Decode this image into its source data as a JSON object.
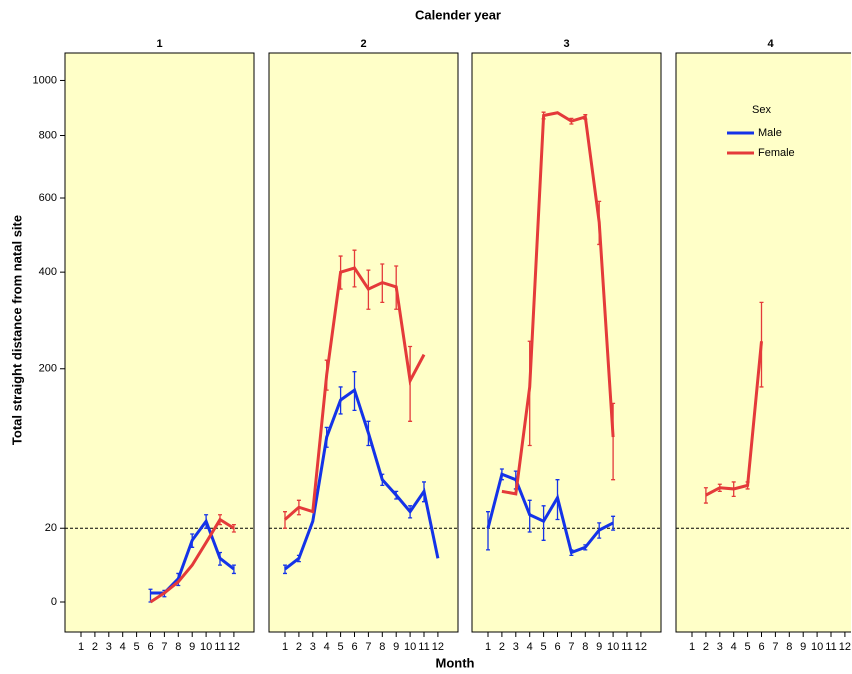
{
  "chart_data": {
    "type": "line",
    "title": "Calender year",
    "x_label": "Month",
    "y_label": "Total straight distance from natal site",
    "y_scale": "sqrt",
    "ylim": [
      0,
      1100
    ],
    "yticks": [
      0,
      20,
      200,
      400,
      600,
      800,
      1000
    ],
    "hline": 20,
    "categories": [
      "1",
      "2",
      "3",
      "4",
      "5",
      "6",
      "7",
      "8",
      "9",
      "10",
      "11",
      "12"
    ],
    "legend_title": "Sex",
    "series": [
      {
        "name": "Male",
        "color": "#1433e8"
      },
      {
        "name": "Female",
        "color": "#e43a3a"
      }
    ],
    "panels": [
      {
        "title": "1",
        "series": [
          {
            "values": [
              null,
              null,
              null,
              null,
              null,
              0.3,
              0.3,
              2,
              14,
              24,
              7,
              4
            ],
            "errors": [
              null,
              null,
              null,
              null,
              null,
              0.3,
              0.2,
              1,
              3,
              4,
              2,
              1
            ]
          },
          {
            "values": [
              null,
              null,
              null,
              null,
              null,
              0,
              0.3,
              1.5,
              5,
              13,
              25,
              20
            ],
            "errors": [
              null,
              null,
              null,
              null,
              null,
              null,
              null,
              null,
              null,
              null,
              3,
              2
            ]
          }
        ]
      },
      {
        "title": "2",
        "series": [
          {
            "values": [
              4,
              7,
              24,
              100,
              150,
              165,
              105,
              55,
              42,
              30,
              45,
              7
            ],
            "errors": [
              1,
              1,
              null,
              12,
              20,
              30,
              15,
              5,
              3,
              4,
              8,
              null
            ]
          },
          {
            "values": [
              25,
              33,
              30,
              190,
              400,
              410,
              360,
              375,
              365,
              180,
              225,
              null
            ],
            "errors": [
              5,
              5,
              null,
              25,
              40,
              45,
              45,
              45,
              50,
              60,
              null,
              null
            ]
          }
        ]
      },
      {
        "title": "3",
        "series": [
          {
            "values": [
              20,
              60,
              55,
              28,
              24,
              40,
              9,
              11,
              19,
              23,
              null,
              null
            ],
            "errors": [
              10,
              5,
              8,
              10,
              10,
              15,
              1,
              1,
              4,
              4,
              null,
              null
            ]
          },
          {
            "values": [
              null,
              45,
              43,
              170,
              870,
              880,
              850,
              865,
              530,
              100,
              null,
              null
            ],
            "errors": [
              null,
              null,
              null,
              80,
              12,
              null,
              10,
              8,
              60,
              45,
              null,
              null
            ]
          }
        ]
      },
      {
        "title": "4",
        "series": [
          {
            "values": [
              null,
              null,
              null,
              null,
              null,
              null,
              null,
              null,
              null,
              null,
              null,
              null
            ],
            "errors": [
              null,
              null,
              null,
              null,
              null,
              null,
              null,
              null,
              null,
              null,
              null,
              null
            ]
          },
          {
            "values": [
              null,
              42,
              48,
              47,
              50,
              250,
              null,
              null,
              null,
              null,
              null,
              null
            ],
            "errors": [
              null,
              6,
              3,
              6,
              3,
              80,
              null,
              null,
              null,
              null,
              null,
              null
            ]
          }
        ]
      }
    ]
  }
}
